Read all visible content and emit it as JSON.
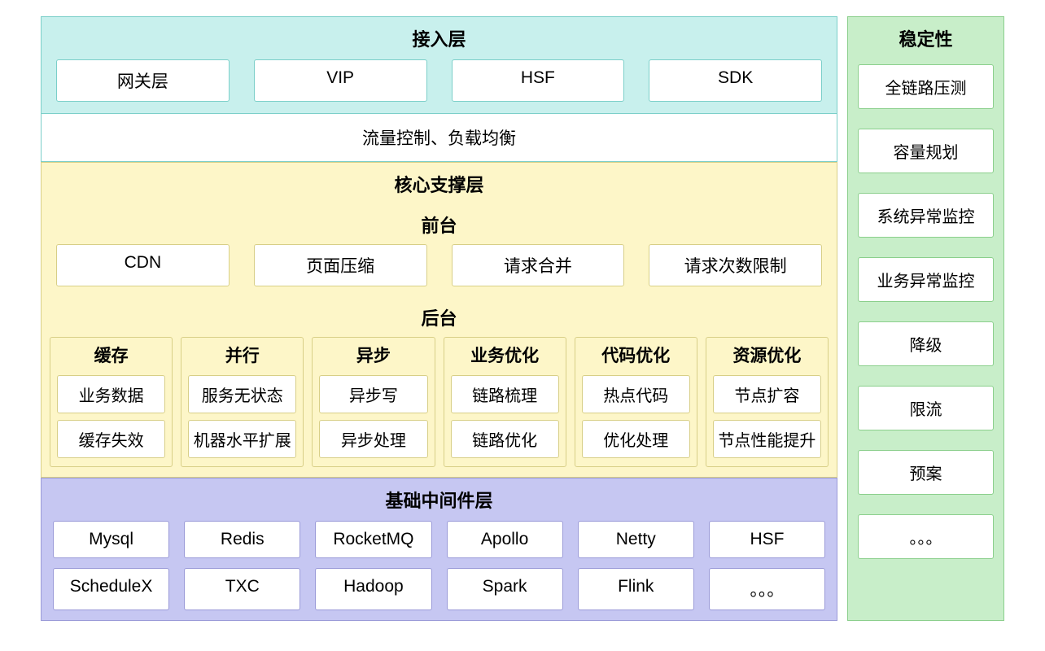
{
  "colors": {
    "access_bg": "#c8f0ed",
    "access_border": "#7bcfc9",
    "core_bg": "#fdf6c8",
    "core_border": "#d8cf87",
    "mw_bg": "#c6c7f2",
    "mw_border": "#9a9ad8",
    "stab_bg": "#c8eec9",
    "stab_border": "#8bcf8c",
    "box_bg": "#ffffff",
    "text": "#000000"
  },
  "typography": {
    "title_fontsize_pt": 16,
    "title_weight": 700,
    "box_fontsize_pt": 15,
    "font_family": "PingFang SC / Microsoft YaHei"
  },
  "access": {
    "title": "接入层",
    "items": [
      "网关层",
      "VIP",
      "HSF",
      "SDK"
    ],
    "banner": "流量控制、负载均衡"
  },
  "core": {
    "title": "核心支撑层",
    "frontend": {
      "title": "前台",
      "items": [
        "CDN",
        "页面压缩",
        "请求合并",
        "请求次数限制"
      ]
    },
    "backend": {
      "title": "后台",
      "groups": [
        {
          "title": "缓存",
          "items": [
            "业务数据",
            "缓存失效"
          ]
        },
        {
          "title": "并行",
          "items": [
            "服务无状态",
            "机器水平扩展"
          ]
        },
        {
          "title": "异步",
          "items": [
            "异步写",
            "异步处理"
          ]
        },
        {
          "title": "业务优化",
          "items": [
            "链路梳理",
            "链路优化"
          ]
        },
        {
          "title": "代码优化",
          "items": [
            "热点代码",
            "优化处理"
          ]
        },
        {
          "title": "资源优化",
          "items": [
            "节点扩容",
            "节点性能提升"
          ]
        }
      ]
    }
  },
  "middleware": {
    "title": "基础中间件层",
    "row1": [
      "Mysql",
      "Redis",
      "RocketMQ",
      "Apollo",
      "Netty",
      "HSF"
    ],
    "row2": [
      "ScheduleX",
      "TXC",
      "Hadoop",
      "Spark",
      "Flink",
      "。。。"
    ]
  },
  "stability": {
    "title": "稳定性",
    "items": [
      "全链路压测",
      "容量规划",
      "系统异常监控",
      "业务异常监控",
      "降级",
      "限流",
      "预案",
      "。。。"
    ]
  }
}
